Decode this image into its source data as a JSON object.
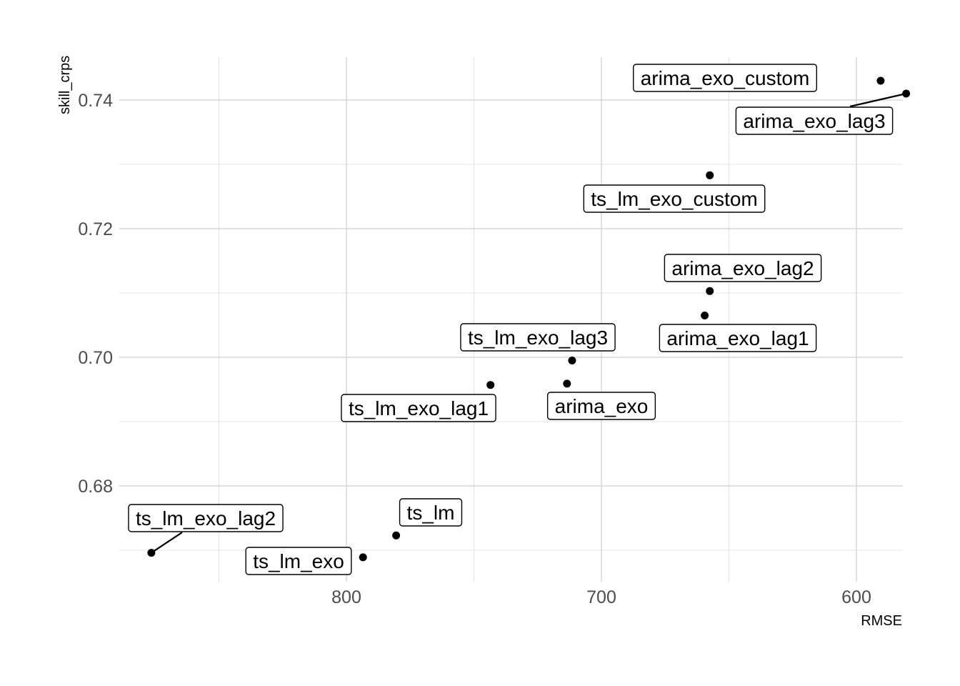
{
  "chart_data": {
    "type": "scatter",
    "x_axis": {
      "label": "RMSE",
      "reversed": true,
      "ticks": [
        800,
        700,
        600
      ],
      "range": [
        870,
        582
      ]
    },
    "y_axis": {
      "label": "skill_crps",
      "ticks": [
        0.68,
        0.7,
        0.72,
        0.74
      ],
      "tick_labels": [
        "0.68",
        "0.70",
        "0.72",
        "0.74"
      ],
      "range": [
        0.6651,
        0.7467
      ]
    },
    "grid": true,
    "points": [
      {
        "label": "arima_exo_custom",
        "x": 590.5,
        "y": 0.743
      },
      {
        "label": "arima_exo_lag3",
        "x": 580.5,
        "y": 0.741
      },
      {
        "label": "ts_lm_exo_custom",
        "x": 657.5,
        "y": 0.7283
      },
      {
        "label": "arima_exo_lag2",
        "x": 657.5,
        "y": 0.7103
      },
      {
        "label": "arima_exo_lag1",
        "x": 659.5,
        "y": 0.7065
      },
      {
        "label": "ts_lm_exo_lag3",
        "x": 711.5,
        "y": 0.6995
      },
      {
        "label": "arima_exo",
        "x": 713.5,
        "y": 0.6959
      },
      {
        "label": "ts_lm_exo_lag1",
        "x": 743.5,
        "y": 0.6957
      },
      {
        "label": "ts_lm",
        "x": 780.5,
        "y": 0.6723
      },
      {
        "label": "ts_lm_exo",
        "x": 793.5,
        "y": 0.6689
      },
      {
        "label": "ts_lm_exo_lag2",
        "x": 876.5,
        "y": 0.6696
      }
    ]
  }
}
